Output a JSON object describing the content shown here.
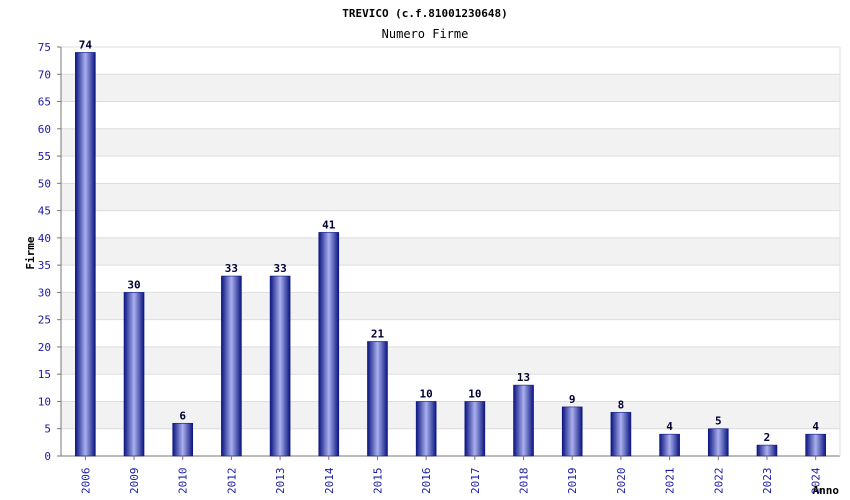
{
  "chart_data": {
    "type": "bar",
    "title": "TREVICO (c.f.81001230648)",
    "subtitle": "Numero Firme",
    "xlabel": "Anno",
    "ylabel": "Firme",
    "categories": [
      "2006",
      "2009",
      "2010",
      "2012",
      "2013",
      "2014",
      "2015",
      "2016",
      "2017",
      "2018",
      "2019",
      "2020",
      "2021",
      "2022",
      "2023",
      "2024"
    ],
    "values": [
      74,
      30,
      6,
      33,
      33,
      41,
      21,
      10,
      10,
      13,
      9,
      8,
      4,
      5,
      2,
      4
    ],
    "ylim": [
      0,
      75
    ],
    "yticks": [
      "0",
      "5",
      "10",
      "15",
      "20",
      "25",
      "30",
      "35",
      "40",
      "45",
      "50",
      "55",
      "60",
      "65",
      "70",
      "75"
    ],
    "grid": true,
    "colors": {
      "bar_dark": "#0b1580",
      "bar_light": "#aab0ee",
      "band": "#f2f2f2",
      "tick_text": "#1a1aa6"
    }
  }
}
